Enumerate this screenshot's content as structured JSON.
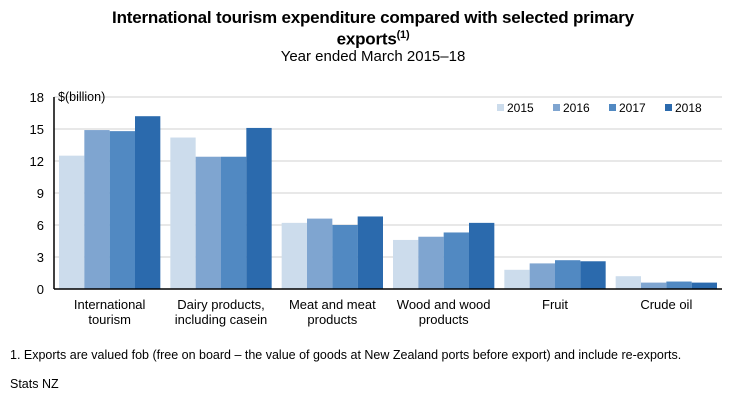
{
  "chart_data": {
    "type": "bar",
    "title": "International tourism expenditure compared with selected primary exports",
    "title_line1": "International tourism expenditure compared with selected primary",
    "title_line2": "exports",
    "title_superscript": "(1)",
    "subtitle": "Year ended March 2015–18",
    "ylabel": "$(billion)",
    "xlabel": "",
    "ylim": [
      0,
      18
    ],
    "yticks": [
      0,
      3,
      6,
      9,
      12,
      15,
      18
    ],
    "grid": true,
    "legend_position": "top-right",
    "categories": [
      [
        "International",
        "tourism"
      ],
      [
        "Dairy products,",
        "including casein"
      ],
      [
        "Meat and meat",
        "products"
      ],
      [
        "Wood and wood",
        "products"
      ],
      [
        "Fruit"
      ],
      [
        "Crude oil"
      ]
    ],
    "series": [
      {
        "name": "2015",
        "color": "#ccdcec",
        "values": [
          12.5,
          14.2,
          6.2,
          4.6,
          1.8,
          1.2
        ]
      },
      {
        "name": "2016",
        "color": "#7fa5d0",
        "values": [
          14.9,
          12.4,
          6.6,
          4.9,
          2.4,
          0.6
        ]
      },
      {
        "name": "2017",
        "color": "#5189c2",
        "values": [
          14.8,
          12.4,
          6.0,
          5.3,
          2.7,
          0.7
        ]
      },
      {
        "name": "2018",
        "color": "#2b6aad",
        "values": [
          16.2,
          15.1,
          6.8,
          6.2,
          2.6,
          0.6
        ]
      }
    ]
  },
  "footnote": "1. Exports are valued fob (free on board – the value of goods at New Zealand ports before export) and include re-exports.",
  "source": "Stats NZ"
}
